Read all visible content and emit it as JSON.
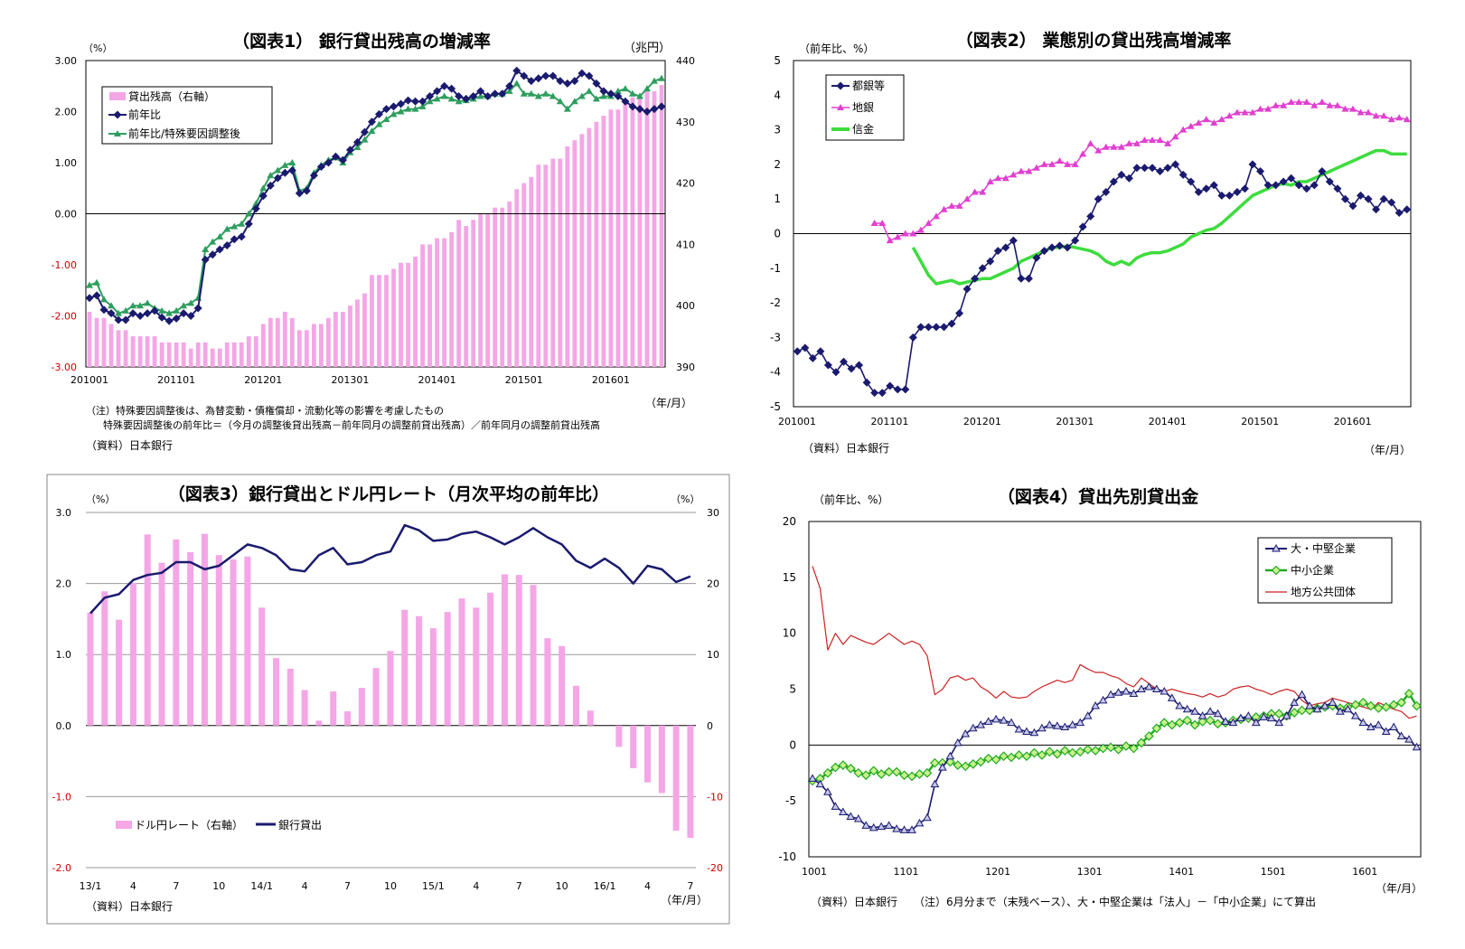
{
  "chart_data": [
    {
      "type": "bar+line",
      "title": "（図表1） 銀行貸出残高の増減率",
      "left_unit": "（%）",
      "right_unit": "（兆円）",
      "x_unit": "（年/月）",
      "x_tick_labels": [
        "201001",
        "201101",
        "201201",
        "201301",
        "201401",
        "201501",
        "201601"
      ],
      "y_left_ticks": [
        "3.00",
        "2.00",
        "1.00",
        "0.00",
        "-1.00",
        "-2.00",
        "-3.00"
      ],
      "y_right_ticks": [
        "440",
        "430",
        "420",
        "410",
        "400",
        "390"
      ],
      "ylim_left": [
        -3,
        3
      ],
      "ylim_right": [
        390,
        440
      ],
      "legend": [
        "貸出残高（右軸）",
        "前年比",
        "前年比/特殊要因調整後"
      ],
      "legend_placement": "top-left",
      "colors": {
        "bars": "#f4a6e6",
        "yoy": "#1a1a6e",
        "adjusted": "#2e9e5e"
      },
      "series": [
        {
          "name": "貸出残高（右軸）",
          "axis": "right",
          "kind": "bar",
          "values": [
            399,
            398,
            398,
            397,
            396,
            396,
            395,
            395,
            395,
            395,
            394,
            394,
            394,
            394,
            393,
            394,
            394,
            393,
            393,
            394,
            394,
            394,
            395,
            395,
            397,
            398,
            398,
            399,
            398,
            396,
            396,
            397,
            397,
            398,
            399,
            399,
            400,
            401,
            402,
            405,
            405,
            405,
            406,
            407,
            407,
            408,
            410,
            410,
            411,
            411,
            412,
            414,
            413,
            414,
            415,
            415,
            416,
            416,
            417,
            419,
            420,
            421,
            423,
            423,
            424,
            424,
            426,
            427,
            428,
            429,
            430,
            431,
            432,
            432,
            433,
            434,
            434,
            435,
            435,
            436
          ]
        },
        {
          "name": "前年比",
          "axis": "left",
          "kind": "line",
          "values": [
            -1.65,
            -1.6,
            -1.88,
            -1.95,
            -2.08,
            -2.08,
            -1.95,
            -2.0,
            -1.95,
            -1.9,
            -2.03,
            -2.1,
            -2.05,
            -1.95,
            -2.0,
            -1.85,
            -0.9,
            -0.8,
            -0.7,
            -0.62,
            -0.5,
            -0.45,
            -0.2,
            0.1,
            0.35,
            0.55,
            0.7,
            0.8,
            0.85,
            0.4,
            0.45,
            0.75,
            0.92,
            1.0,
            1.12,
            1.05,
            1.25,
            1.4,
            1.6,
            1.8,
            1.95,
            2.05,
            2.1,
            2.15,
            2.22,
            2.2,
            2.2,
            2.3,
            2.4,
            2.5,
            2.45,
            2.3,
            2.25,
            2.3,
            2.4,
            2.3,
            2.35,
            2.35,
            2.5,
            2.8,
            2.7,
            2.6,
            2.65,
            2.7,
            2.7,
            2.6,
            2.55,
            2.6,
            2.75,
            2.7,
            2.55,
            2.4,
            2.35,
            2.3,
            2.2,
            2.1,
            2.05,
            2.0,
            2.05,
            2.1
          ]
        },
        {
          "name": "前年比/特殊要因調整後",
          "axis": "left",
          "kind": "line",
          "values": [
            -1.4,
            -1.35,
            -1.68,
            -1.8,
            -1.95,
            -1.9,
            -1.8,
            -1.8,
            -1.75,
            -1.85,
            -1.9,
            -1.95,
            -1.9,
            -1.8,
            -1.75,
            -1.65,
            -0.7,
            -0.55,
            -0.45,
            -0.3,
            -0.25,
            -0.2,
            0.0,
            0.2,
            0.5,
            0.75,
            0.85,
            0.95,
            1.0,
            0.45,
            0.5,
            0.8,
            0.95,
            1.05,
            1.1,
            1.0,
            1.2,
            1.3,
            1.45,
            1.62,
            1.75,
            1.85,
            1.95,
            2.0,
            2.05,
            2.05,
            2.1,
            2.2,
            2.25,
            2.3,
            2.25,
            2.2,
            2.22,
            2.25,
            2.3,
            2.3,
            2.35,
            2.35,
            2.4,
            2.55,
            2.35,
            2.35,
            2.3,
            2.35,
            2.3,
            2.2,
            2.05,
            2.2,
            2.3,
            2.4,
            2.25,
            2.3,
            2.3,
            2.4,
            2.45,
            2.35,
            2.3,
            2.45,
            2.6,
            2.65
          ]
        }
      ],
      "notes": [
        "（注）特殊要因調整後は、為替変動・債権償却・流動化等の影響を考慮したもの",
        "特殊要因調整後の前年比＝（今月の調整後貸出残高－前年同月の調整前貸出残高）／前年同月の調整前貸出残高",
        "（資料）日本銀行"
      ]
    },
    {
      "type": "line",
      "title": "（図表2） 業態別の貸出残高増減率",
      "y_unit": "（前年比、%）",
      "x_unit": "（年/月）",
      "x_tick_labels": [
        "201001",
        "201101",
        "201201",
        "201301",
        "201401",
        "201501",
        "201601"
      ],
      "y_ticks": [
        "5",
        "4",
        "3",
        "2",
        "1",
        "0",
        "-1",
        "-2",
        "-3",
        "-4",
        "-5"
      ],
      "ylim": [
        -5,
        5
      ],
      "legend": [
        "都銀等",
        "地銀",
        "信金"
      ],
      "legend_placement": "top-left",
      "colors": {
        "toginra": "#1a1a6e",
        "chigin": "#e040d0",
        "shinkin": "#3ddc3d"
      },
      "series": [
        {
          "name": "都銀等",
          "values": [
            -3.4,
            -3.3,
            -3.6,
            -3.4,
            -3.8,
            -4.0,
            -3.7,
            -3.9,
            -3.8,
            -4.3,
            -4.6,
            -4.6,
            -4.4,
            -4.5,
            -4.5,
            -3.0,
            -2.7,
            -2.7,
            -2.7,
            -2.7,
            -2.6,
            -2.3,
            -1.6,
            -1.3,
            -1.0,
            -0.8,
            -0.5,
            -0.4,
            -0.2,
            -1.3,
            -1.3,
            -0.7,
            -0.5,
            -0.4,
            -0.35,
            -0.4,
            -0.2,
            0.2,
            0.5,
            1.0,
            1.2,
            1.5,
            1.7,
            1.6,
            1.9,
            1.9,
            1.9,
            1.8,
            1.9,
            2.0,
            1.7,
            1.5,
            1.2,
            1.3,
            1.4,
            1.1,
            1.1,
            1.2,
            1.3,
            2.0,
            1.8,
            1.4,
            1.4,
            1.5,
            1.6,
            1.4,
            1.3,
            1.4,
            1.8,
            1.5,
            1.3,
            1.0,
            0.8,
            1.1,
            1.0,
            0.7,
            1.0,
            0.9,
            0.6,
            0.7
          ]
        },
        {
          "name": "地銀",
          "values": [
            0.3,
            0.3,
            -0.2,
            -0.1,
            0.0,
            0.0,
            0.1,
            0.3,
            0.5,
            0.7,
            0.8,
            0.8,
            1.0,
            1.2,
            1.2,
            1.5,
            1.6,
            1.6,
            1.7,
            1.8,
            1.8,
            1.9,
            2.0,
            2.0,
            2.1,
            2.0,
            2.0,
            2.3,
            2.6,
            2.4,
            2.5,
            2.5,
            2.5,
            2.6,
            2.6,
            2.7,
            2.7,
            2.7,
            2.6,
            2.8,
            3.0,
            3.1,
            3.2,
            3.3,
            3.2,
            3.3,
            3.4,
            3.5,
            3.5,
            3.5,
            3.6,
            3.6,
            3.7,
            3.7,
            3.8,
            3.8,
            3.8,
            3.7,
            3.8,
            3.7,
            3.7,
            3.6,
            3.6,
            3.5,
            3.5,
            3.4,
            3.4,
            3.3,
            3.35,
            3.3
          ]
        },
        {
          "name": "信金",
          "values": [
            -0.4,
            -0.8,
            -1.2,
            -1.45,
            -1.4,
            -1.35,
            -1.45,
            -1.4,
            -1.35,
            -1.3,
            -1.3,
            -1.2,
            -1.1,
            -1.0,
            -0.8,
            -0.7,
            -0.6,
            -0.5,
            -0.4,
            -0.4,
            -0.35,
            -0.4,
            -0.45,
            -0.5,
            -0.6,
            -0.8,
            -0.9,
            -0.8,
            -0.9,
            -0.7,
            -0.6,
            -0.55,
            -0.55,
            -0.5,
            -0.4,
            -0.3,
            -0.1,
            0.0,
            0.1,
            0.15,
            0.3,
            0.5,
            0.7,
            0.9,
            1.1,
            1.2,
            1.3,
            1.4,
            1.45,
            1.4,
            1.5,
            1.5,
            1.6,
            1.7,
            1.8,
            1.9,
            2.0,
            2.1,
            2.2,
            2.3,
            2.4,
            2.4,
            2.3,
            2.3,
            2.3
          ]
        }
      ],
      "notes": [
        "（資料）日本銀行"
      ]
    },
    {
      "type": "bar+line",
      "title": "（図表3）銀行貸出とドル円レート（月次平均の前年比）",
      "left_unit": "（%）",
      "right_unit": "（%）",
      "x_unit": "（年/月）",
      "categories": [
        "13/1",
        "2",
        "3",
        "4",
        "5",
        "6",
        "7",
        "8",
        "9",
        "10",
        "11",
        "12",
        "14/1",
        "2",
        "3",
        "4",
        "5",
        "6",
        "7",
        "8",
        "9",
        "10",
        "11",
        "12",
        "15/1",
        "2",
        "3",
        "4",
        "5",
        "6",
        "7",
        "8",
        "9",
        "10",
        "11",
        "12",
        "16/1",
        "2",
        "3",
        "4",
        "5",
        "6",
        "7"
      ],
      "x_tick_labels": [
        "13/1",
        "4",
        "7",
        "10",
        "14/1",
        "4",
        "7",
        "10",
        "15/1",
        "4",
        "7",
        "10",
        "16/1",
        "4",
        "7"
      ],
      "y_left_ticks": [
        "3.0",
        "2.0",
        "1.0",
        "0.0",
        "-1.0",
        "-2.0"
      ],
      "y_right_ticks": [
        "30",
        "20",
        "10",
        "0",
        "-10",
        "-20"
      ],
      "ylim_left": [
        -2,
        3
      ],
      "ylim_right": [
        -20,
        30
      ],
      "legend": [
        "ドル円レート（右軸）",
        "銀行貸出"
      ],
      "legend_placement": "bottom-left",
      "colors": {
        "bars": "#f4a6e6",
        "line": "#1a1a6e"
      },
      "series": [
        {
          "name": "ドル円レート（右軸）",
          "axis": "right",
          "kind": "bar",
          "values": [
            15.9,
            18.9,
            14.9,
            20.1,
            26.9,
            22.9,
            26.2,
            24.4,
            27.0,
            24.0,
            23.4,
            23.8,
            16.6,
            9.5,
            8.0,
            5.0,
            0.7,
            4.8,
            2.0,
            5.3,
            8.1,
            10.5,
            16.3,
            15.4,
            13.7,
            16.0,
            17.9,
            16.6,
            18.7,
            21.3,
            21.2,
            19.8,
            12.3,
            11.2,
            5.6,
            2.1,
            0.0,
            -3.0,
            -6.0,
            -8.0,
            -9.5,
            -14.8,
            -15.8
          ]
        },
        {
          "name": "銀行貸出",
          "axis": "left",
          "kind": "line",
          "values": [
            1.58,
            1.8,
            1.85,
            2.05,
            2.12,
            2.15,
            2.3,
            2.3,
            2.2,
            2.25,
            2.4,
            2.55,
            2.5,
            2.4,
            2.2,
            2.17,
            2.4,
            2.5,
            2.27,
            2.3,
            2.4,
            2.45,
            2.82,
            2.75,
            2.6,
            2.62,
            2.7,
            2.73,
            2.65,
            2.55,
            2.65,
            2.78,
            2.65,
            2.55,
            2.32,
            2.22,
            2.35,
            2.22,
            2.0,
            2.25,
            2.2,
            2.02,
            2.1
          ]
        }
      ],
      "notes": [
        "（資料）日本銀行"
      ]
    },
    {
      "type": "line",
      "title": "（図表4）貸出先別貸出金",
      "y_unit": "（前年比、%）",
      "x_unit": "（年/月）",
      "x_tick_labels": [
        "1001",
        "1101",
        "1201",
        "1301",
        "1401",
        "1501",
        "1601"
      ],
      "y_ticks": [
        "20",
        "15",
        "10",
        "5",
        "0",
        "-5",
        "-10"
      ],
      "ylim": [
        -10,
        20
      ],
      "legend": [
        "大・中堅企業",
        "中小企業",
        "地方公共団体"
      ],
      "legend_placement": "top-right",
      "colors": {
        "large": "#1a1a6e",
        "sme": "#22aa22",
        "local": "#cc2222"
      },
      "series": [
        {
          "name": "大・中堅企業",
          "values": [
            -3.0,
            -3.5,
            -4.2,
            -5.5,
            -6.0,
            -6.4,
            -6.6,
            -7.2,
            -7.4,
            -7.3,
            -7.2,
            -7.5,
            -7.6,
            -7.6,
            -7.0,
            -6.5,
            -3.5,
            -2.0,
            -1.0,
            0.2,
            1.0,
            1.5,
            1.8,
            2.1,
            2.3,
            2.2,
            2.0,
            1.4,
            1.2,
            1.1,
            1.5,
            1.8,
            1.7,
            1.6,
            1.8,
            2.0,
            2.6,
            3.5,
            4.0,
            4.5,
            4.7,
            4.8,
            4.6,
            5.0,
            5.2,
            5.0,
            4.8,
            4.2,
            3.5,
            3.2,
            3.0,
            2.6,
            3.0,
            2.8,
            2.1,
            2.0,
            2.4,
            2.6,
            2.0,
            2.5,
            2.4,
            2.0,
            2.6,
            3.8,
            4.5,
            3.5,
            3.2,
            3.5,
            3.8,
            3.0,
            3.2,
            2.6,
            2.0,
            1.6,
            1.8,
            1.2,
            1.6,
            0.8,
            0.5,
            -0.2
          ]
        },
        {
          "name": "中小企業",
          "values": [
            -3.2,
            -3.0,
            -2.5,
            -2.0,
            -1.8,
            -2.1,
            -2.5,
            -2.7,
            -2.3,
            -2.6,
            -2.4,
            -2.4,
            -2.7,
            -2.8,
            -2.6,
            -2.5,
            -1.6,
            -1.6,
            -1.5,
            -1.8,
            -1.9,
            -1.7,
            -1.5,
            -1.2,
            -1.3,
            -1.0,
            -1.1,
            -0.9,
            -1.0,
            -0.7,
            -0.9,
            -0.6,
            -0.8,
            -0.5,
            -0.7,
            -0.6,
            -0.4,
            -0.5,
            -0.3,
            -0.2,
            -0.4,
            -0.1,
            -0.3,
            0.2,
            0.8,
            1.5,
            2.0,
            1.8,
            2.0,
            2.2,
            1.8,
            2.1,
            2.2,
            1.9,
            2.0,
            2.2,
            2.3,
            2.4,
            2.5,
            2.6,
            2.8,
            2.8,
            2.6,
            2.9,
            3.1,
            3.1,
            3.3,
            3.4,
            3.5,
            3.3,
            3.4,
            3.6,
            3.8,
            3.5,
            3.3,
            3.4,
            3.6,
            3.8,
            4.6,
            3.5
          ]
        },
        {
          "name": "地方公共団体",
          "values": [
            16.0,
            14.0,
            8.5,
            10.0,
            9.0,
            9.8,
            9.5,
            9.2,
            9.0,
            9.5,
            10.0,
            9.5,
            9.0,
            9.3,
            9.0,
            8.0,
            4.5,
            5.0,
            6.0,
            6.2,
            5.8,
            6.0,
            5.2,
            4.8,
            4.2,
            4.8,
            4.3,
            4.2,
            4.3,
            4.8,
            5.2,
            5.5,
            5.8,
            5.6,
            5.8,
            7.2,
            6.8,
            6.5,
            6.5,
            6.2,
            6.0,
            5.5,
            5.2,
            6.0,
            5.5,
            5.0,
            4.8,
            5.0,
            4.8,
            4.6,
            4.5,
            4.3,
            4.6,
            4.3,
            4.5,
            5.0,
            5.2,
            5.3,
            5.0,
            4.8,
            4.5,
            4.8,
            5.0,
            4.8,
            4.0,
            3.5,
            3.7,
            3.8,
            4.2,
            4.0,
            3.8,
            3.6,
            3.4,
            3.2,
            3.8,
            3.5,
            3.2,
            3.0,
            2.4,
            2.6
          ]
        }
      ],
      "notes": [
        "（資料）日本銀行　　（注）6月分まで（末残ベース）、大・中堅企業は「法人」－「中小企業」にて算出"
      ]
    }
  ]
}
